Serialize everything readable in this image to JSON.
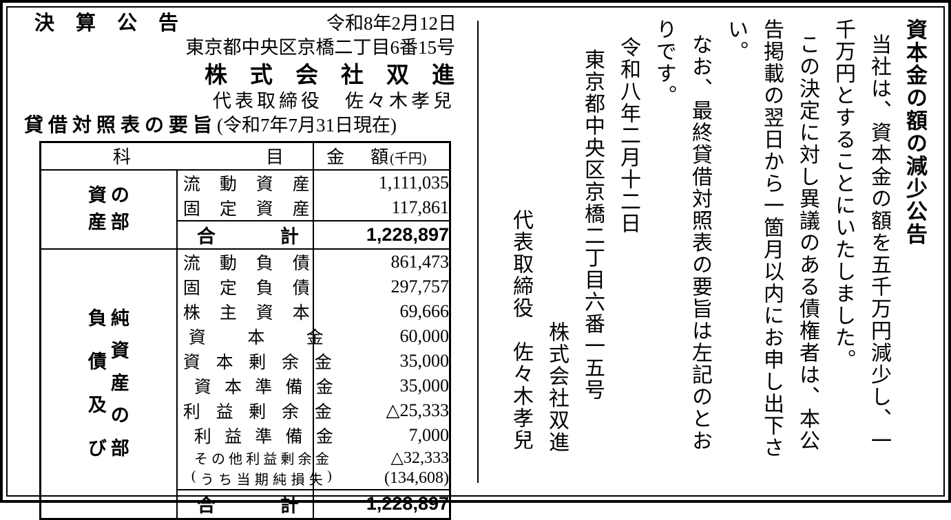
{
  "colors": {
    "ink": "#000000",
    "background": "#ffffff"
  },
  "settlement": {
    "notice_title": "決算公告",
    "date": "令和8年2月12日",
    "address": "東京都中央区京橋二丁目6番15号",
    "company": "株式会社双進",
    "representative": "代表取締役　佐々木孝兒",
    "bs_title": "貸借対照表の要旨",
    "bs_asof": "(令和7年7月31日現在)"
  },
  "table": {
    "col_item": "科目",
    "col_amount": "金額",
    "col_amount_unit": "(千円)",
    "unit": "千円",
    "sections": [
      {
        "label": "資産の部",
        "label_columns": [
          "資産",
          "の部"
        ],
        "rows": [
          {
            "name": "流動資産",
            "value": "1,111,035"
          },
          {
            "name": "固定資産",
            "value": "117,861"
          }
        ],
        "total_label": "合計",
        "total_value": "1,228,897"
      },
      {
        "label": "負債及び純資産の部",
        "label_columns": [
          "負債及び",
          "純資産の部"
        ],
        "rows": [
          {
            "name": "流動負債",
            "value": "861,473"
          },
          {
            "name": "固定負債",
            "value": "297,757"
          },
          {
            "name": "株主資本",
            "value": "69,666"
          },
          {
            "name": "資本金",
            "value": "60,000"
          },
          {
            "name": "資本剰余金",
            "value": "35,000"
          },
          {
            "name": "資本準備金",
            "value": "35,000"
          },
          {
            "name": "利益剰余金",
            "value": "△25,333"
          },
          {
            "name": "利益準備金",
            "value": "7,000"
          },
          {
            "name": "その他利益剰余金",
            "value": "△32,333"
          },
          {
            "name": "(うち当期純損失)",
            "value": "(134,608)"
          }
        ],
        "total_label": "合計",
        "total_value": "1,228,897"
      }
    ]
  },
  "announcement": {
    "title": "資本金の額の減少公告",
    "body": [
      "当社は、資本金の額を五千万円減少し、一",
      "千万円とすることにいたしました。",
      "この決定に対し異議のある債権者は、本公",
      "告掲載の翌日から一箇月以内にお申し出下さ",
      "い。",
      "なお、最終貸借対照表の要旨は左記のとお",
      "りです。"
    ],
    "date": "令和八年二月十二日",
    "address": "東京都中央区京橋二丁目六番一五号",
    "company": "株式会社双進",
    "representative": "代表取締役　佐々木孝兒"
  }
}
